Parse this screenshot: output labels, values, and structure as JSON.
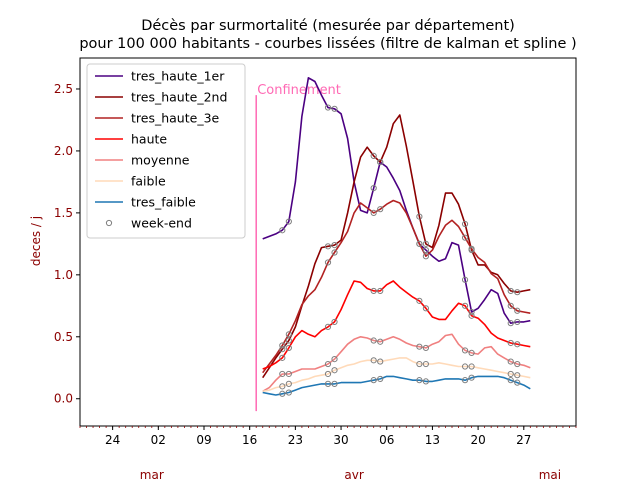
{
  "chart_data": {
    "type": "line",
    "title_lines": [
      "Décès par surmortalité (mesurée par département)",
      "pour 100 000 habitants - courbes lissées (filtre de kalman et spline )"
    ],
    "ylabel": "deces / j",
    "xlabel": "",
    "ylim": [
      -0.22,
      2.75
    ],
    "xlim": [
      "2020-02-19",
      "2020-05-05"
    ],
    "yticks": [
      0.0,
      0.5,
      1.0,
      1.5,
      2.0,
      2.5
    ],
    "ytick_labels": [
      "0.0",
      "0.5",
      "1.0",
      "1.5",
      "2.0",
      "2.5"
    ],
    "xticks": [
      {
        "date": "2020-02-24",
        "label": "24"
      },
      {
        "date": "2020-03-02",
        "label": "02"
      },
      {
        "date": "2020-03-09",
        "label": "09"
      },
      {
        "date": "2020-03-16",
        "label": "16"
      },
      {
        "date": "2020-03-23",
        "label": "23"
      },
      {
        "date": "2020-03-30",
        "label": "30"
      },
      {
        "date": "2020-04-06",
        "label": "06"
      },
      {
        "date": "2020-04-13",
        "label": "13"
      },
      {
        "date": "2020-04-20",
        "label": "20"
      },
      {
        "date": "2020-04-27",
        "label": "27"
      }
    ],
    "month_labels": [
      {
        "date": "2020-03-01",
        "label": "mar"
      },
      {
        "date": "2020-04-01",
        "label": "avr"
      },
      {
        "date": "2020-05-01",
        "label": "mai"
      }
    ],
    "annotation": {
      "text": "Confinement",
      "date": "2020-03-17",
      "y_top": 2.45,
      "y_bottom": -0.1,
      "color": "#ff69b4"
    },
    "legend_position": "upper-left",
    "grid": false,
    "series": [
      {
        "name": "tres_haute_1er",
        "color": "#4b0082",
        "x": [
          "2020-03-18",
          "2020-03-20",
          "2020-03-21",
          "2020-03-22",
          "2020-03-23",
          "2020-03-24",
          "2020-03-25",
          "2020-03-26",
          "2020-03-27",
          "2020-03-28",
          "2020-03-29",
          "2020-03-30",
          "2020-03-31",
          "2020-04-01",
          "2020-04-02",
          "2020-04-03",
          "2020-04-04",
          "2020-04-05",
          "2020-04-06",
          "2020-04-07",
          "2020-04-08",
          "2020-04-09",
          "2020-04-10",
          "2020-04-11",
          "2020-04-12",
          "2020-04-13",
          "2020-04-14",
          "2020-04-15",
          "2020-04-16",
          "2020-04-17",
          "2020-04-18",
          "2020-04-19",
          "2020-04-20",
          "2020-04-21",
          "2020-04-22",
          "2020-04-23",
          "2020-04-24",
          "2020-04-25",
          "2020-04-26",
          "2020-04-27",
          "2020-04-28"
        ],
        "values": [
          1.29,
          1.33,
          1.36,
          1.43,
          1.75,
          2.28,
          2.59,
          2.56,
          2.45,
          2.35,
          2.34,
          2.3,
          2.1,
          1.75,
          1.52,
          1.5,
          1.7,
          1.91,
          1.87,
          1.78,
          1.68,
          1.52,
          1.38,
          1.25,
          1.2,
          1.15,
          1.11,
          1.13,
          1.26,
          1.24,
          0.96,
          0.7,
          0.73,
          0.8,
          0.88,
          0.85,
          0.69,
          0.61,
          0.62,
          0.62,
          0.63
        ]
      },
      {
        "name": "tres_haute_2nd",
        "color": "#8b0000",
        "x": [
          "2020-03-18",
          "2020-03-19",
          "2020-03-20",
          "2020-03-21",
          "2020-03-22",
          "2020-03-23",
          "2020-03-24",
          "2020-03-25",
          "2020-03-26",
          "2020-03-27",
          "2020-03-28",
          "2020-03-29",
          "2020-03-30",
          "2020-03-31",
          "2020-04-01",
          "2020-04-02",
          "2020-04-03",
          "2020-04-04",
          "2020-04-05",
          "2020-04-06",
          "2020-04-07",
          "2020-04-08",
          "2020-04-09",
          "2020-04-10",
          "2020-04-11",
          "2020-04-12",
          "2020-04-13",
          "2020-04-14",
          "2020-04-15",
          "2020-04-16",
          "2020-04-17",
          "2020-04-18",
          "2020-04-19",
          "2020-04-20",
          "2020-04-21",
          "2020-04-22",
          "2020-04-23",
          "2020-04-24",
          "2020-04-25",
          "2020-04-26",
          "2020-04-27",
          "2020-04-28"
        ],
        "values": [
          0.17,
          0.25,
          0.33,
          0.4,
          0.47,
          0.58,
          0.75,
          0.91,
          1.09,
          1.22,
          1.23,
          1.24,
          1.28,
          1.5,
          1.75,
          1.95,
          2.03,
          1.96,
          1.91,
          2.03,
          2.22,
          2.29,
          2.04,
          1.76,
          1.47,
          1.25,
          1.22,
          1.4,
          1.66,
          1.66,
          1.57,
          1.41,
          1.2,
          1.08,
          1.08,
          1.02,
          1.0,
          0.93,
          0.87,
          0.86,
          0.87,
          0.88
        ]
      },
      {
        "name": "tres_haute_3e",
        "color": "#b22222",
        "x": [
          "2020-03-18",
          "2020-03-19",
          "2020-03-20",
          "2020-03-21",
          "2020-03-22",
          "2020-03-23",
          "2020-03-24",
          "2020-03-25",
          "2020-03-26",
          "2020-03-27",
          "2020-03-28",
          "2020-03-29",
          "2020-03-30",
          "2020-03-31",
          "2020-04-01",
          "2020-04-02",
          "2020-04-03",
          "2020-04-04",
          "2020-04-05",
          "2020-04-06",
          "2020-04-07",
          "2020-04-08",
          "2020-04-09",
          "2020-04-10",
          "2020-04-11",
          "2020-04-12",
          "2020-04-13",
          "2020-04-14",
          "2020-04-15",
          "2020-04-16",
          "2020-04-17",
          "2020-04-18",
          "2020-04-19",
          "2020-04-20",
          "2020-04-21",
          "2020-04-22",
          "2020-04-23",
          "2020-04-24",
          "2020-04-25",
          "2020-04-26",
          "2020-04-27",
          "2020-04-28"
        ],
        "values": [
          0.21,
          0.28,
          0.35,
          0.43,
          0.52,
          0.63,
          0.76,
          0.83,
          0.88,
          0.98,
          1.1,
          1.18,
          1.26,
          1.35,
          1.5,
          1.58,
          1.54,
          1.5,
          1.53,
          1.57,
          1.6,
          1.58,
          1.5,
          1.38,
          1.25,
          1.15,
          1.2,
          1.31,
          1.4,
          1.44,
          1.39,
          1.3,
          1.21,
          1.14,
          1.1,
          1.01,
          0.97,
          0.84,
          0.75,
          0.71,
          0.7,
          0.69
        ]
      },
      {
        "name": "haute",
        "color": "#ff0000",
        "x": [
          "2020-03-18",
          "2020-03-19",
          "2020-03-20",
          "2020-03-21",
          "2020-03-22",
          "2020-03-23",
          "2020-03-24",
          "2020-03-25",
          "2020-03-26",
          "2020-03-27",
          "2020-03-28",
          "2020-03-29",
          "2020-03-30",
          "2020-03-31",
          "2020-04-01",
          "2020-04-02",
          "2020-04-03",
          "2020-04-04",
          "2020-04-05",
          "2020-04-06",
          "2020-04-07",
          "2020-04-08",
          "2020-04-09",
          "2020-04-10",
          "2020-04-11",
          "2020-04-12",
          "2020-04-13",
          "2020-04-14",
          "2020-04-15",
          "2020-04-16",
          "2020-04-17",
          "2020-04-18",
          "2020-04-19",
          "2020-04-20",
          "2020-04-21",
          "2020-04-22",
          "2020-04-23",
          "2020-04-24",
          "2020-04-25",
          "2020-04-26",
          "2020-04-27",
          "2020-04-28"
        ],
        "values": [
          0.24,
          0.26,
          0.29,
          0.33,
          0.41,
          0.5,
          0.55,
          0.52,
          0.5,
          0.55,
          0.58,
          0.62,
          0.72,
          0.84,
          0.95,
          0.94,
          0.89,
          0.87,
          0.87,
          0.92,
          0.95,
          0.9,
          0.86,
          0.82,
          0.79,
          0.73,
          0.66,
          0.64,
          0.64,
          0.71,
          0.77,
          0.75,
          0.67,
          0.65,
          0.6,
          0.53,
          0.49,
          0.47,
          0.45,
          0.44,
          0.43,
          0.42
        ]
      },
      {
        "name": "moyenne",
        "color": "#f08080",
        "x": [
          "2020-03-18",
          "2020-03-19",
          "2020-03-20",
          "2020-03-21",
          "2020-03-22",
          "2020-03-23",
          "2020-03-24",
          "2020-03-25",
          "2020-03-26",
          "2020-03-27",
          "2020-03-28",
          "2020-03-29",
          "2020-03-30",
          "2020-03-31",
          "2020-04-01",
          "2020-04-02",
          "2020-04-03",
          "2020-04-04",
          "2020-04-05",
          "2020-04-06",
          "2020-04-07",
          "2020-04-08",
          "2020-04-09",
          "2020-04-10",
          "2020-04-11",
          "2020-04-12",
          "2020-04-13",
          "2020-04-14",
          "2020-04-15",
          "2020-04-16",
          "2020-04-17",
          "2020-04-18",
          "2020-04-19",
          "2020-04-20",
          "2020-04-21",
          "2020-04-22",
          "2020-04-23",
          "2020-04-24",
          "2020-04-25",
          "2020-04-26",
          "2020-04-27",
          "2020-04-28"
        ],
        "values": [
          0.06,
          0.09,
          0.15,
          0.2,
          0.2,
          0.22,
          0.24,
          0.24,
          0.24,
          0.26,
          0.28,
          0.32,
          0.38,
          0.44,
          0.48,
          0.5,
          0.49,
          0.47,
          0.46,
          0.48,
          0.5,
          0.48,
          0.45,
          0.43,
          0.42,
          0.41,
          0.44,
          0.46,
          0.51,
          0.52,
          0.44,
          0.39,
          0.37,
          0.36,
          0.41,
          0.42,
          0.36,
          0.33,
          0.3,
          0.28,
          0.27,
          0.25
        ]
      },
      {
        "name": "faible",
        "color": "#ffdab9",
        "x": [
          "2020-03-18",
          "2020-03-19",
          "2020-03-20",
          "2020-03-21",
          "2020-03-22",
          "2020-03-23",
          "2020-03-24",
          "2020-03-25",
          "2020-03-26",
          "2020-03-27",
          "2020-03-28",
          "2020-03-29",
          "2020-03-30",
          "2020-03-31",
          "2020-04-01",
          "2020-04-02",
          "2020-04-03",
          "2020-04-04",
          "2020-04-05",
          "2020-04-06",
          "2020-04-07",
          "2020-04-08",
          "2020-04-09",
          "2020-04-10",
          "2020-04-11",
          "2020-04-12",
          "2020-04-13",
          "2020-04-14",
          "2020-04-15",
          "2020-04-16",
          "2020-04-17",
          "2020-04-18",
          "2020-04-19",
          "2020-04-20",
          "2020-04-21",
          "2020-04-22",
          "2020-04-23",
          "2020-04-24",
          "2020-04-25",
          "2020-04-26",
          "2020-04-27",
          "2020-04-28"
        ],
        "values": [
          0.06,
          0.07,
          0.09,
          0.1,
          0.12,
          0.13,
          0.15,
          0.16,
          0.18,
          0.19,
          0.2,
          0.23,
          0.25,
          0.27,
          0.28,
          0.3,
          0.31,
          0.31,
          0.3,
          0.31,
          0.32,
          0.33,
          0.33,
          0.3,
          0.28,
          0.28,
          0.28,
          0.29,
          0.28,
          0.27,
          0.26,
          0.26,
          0.26,
          0.25,
          0.24,
          0.23,
          0.22,
          0.21,
          0.2,
          0.19,
          0.18,
          0.17
        ]
      },
      {
        "name": "tres_faible",
        "color": "#1f77b4",
        "x": [
          "2020-03-18",
          "2020-03-19",
          "2020-03-20",
          "2020-03-21",
          "2020-03-22",
          "2020-03-23",
          "2020-03-24",
          "2020-03-25",
          "2020-03-26",
          "2020-03-27",
          "2020-03-28",
          "2020-03-29",
          "2020-03-30",
          "2020-03-31",
          "2020-04-01",
          "2020-04-02",
          "2020-04-03",
          "2020-04-04",
          "2020-04-05",
          "2020-04-06",
          "2020-04-07",
          "2020-04-08",
          "2020-04-09",
          "2020-04-10",
          "2020-04-11",
          "2020-04-12",
          "2020-04-13",
          "2020-04-14",
          "2020-04-15",
          "2020-04-16",
          "2020-04-17",
          "2020-04-18",
          "2020-04-19",
          "2020-04-20",
          "2020-04-21",
          "2020-04-22",
          "2020-04-23",
          "2020-04-24",
          "2020-04-25",
          "2020-04-26",
          "2020-04-27",
          "2020-04-28"
        ],
        "values": [
          0.05,
          0.04,
          0.03,
          0.04,
          0.05,
          0.07,
          0.09,
          0.1,
          0.11,
          0.12,
          0.12,
          0.12,
          0.13,
          0.13,
          0.13,
          0.13,
          0.14,
          0.15,
          0.16,
          0.18,
          0.18,
          0.17,
          0.16,
          0.15,
          0.15,
          0.14,
          0.14,
          0.15,
          0.16,
          0.16,
          0.16,
          0.15,
          0.17,
          0.18,
          0.18,
          0.18,
          0.18,
          0.17,
          0.15,
          0.13,
          0.11,
          0.08
        ]
      }
    ],
    "weekend_markers": {
      "name": "week-end",
      "dates": [
        "2020-03-21",
        "2020-03-22",
        "2020-03-28",
        "2020-03-29",
        "2020-04-04",
        "2020-04-05",
        "2020-04-11",
        "2020-04-12",
        "2020-04-18",
        "2020-04-19",
        "2020-04-25",
        "2020-04-26"
      ],
      "applies_to_series": [
        "tres_haute_1er",
        "tres_haute_2nd",
        "tres_haute_3e",
        "haute",
        "moyenne",
        "faible",
        "tres_faible"
      ]
    },
    "legend": [
      "tres_haute_1er",
      "tres_haute_2nd",
      "tres_haute_3e",
      "haute",
      "moyenne",
      "faible",
      "tres_faible",
      "week-end"
    ]
  }
}
